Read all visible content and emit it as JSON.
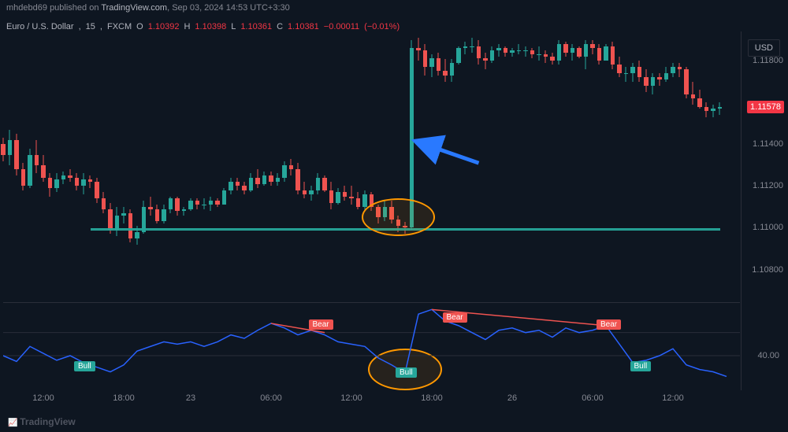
{
  "pubbar": {
    "user": "mhdebd69",
    "text_mid": "published on",
    "site": "TradingView.com",
    "date": "Sep 03, 2024 14:53 UTC+3:30"
  },
  "symbol": {
    "name": "Euro / U.S. Dollar",
    "interval": "15",
    "exchange": "FXCM",
    "O": "1.10392",
    "H": "1.10398",
    "L": "1.10361",
    "C": "1.10381",
    "chg": "−0.00011",
    "chg_pct": "(−0.01%)"
  },
  "price_axis": {
    "currency": "USD",
    "ticks": [
      {
        "label": "1.11800",
        "yval": 1.118
      },
      {
        "label": "1.11400",
        "yval": 1.114
      },
      {
        "label": "1.11200",
        "yval": 1.112
      },
      {
        "label": "1.11000",
        "yval": 1.11
      },
      {
        "label": "1.10800",
        "yval": 1.108
      }
    ],
    "last": {
      "label": "1.11578",
      "yval": 1.11578
    }
  },
  "price_scale": {
    "min": 1.1064,
    "max": 1.1194
  },
  "time_axis": {
    "ticks": [
      {
        "t": 12,
        "label": "12:00"
      },
      {
        "t": 36,
        "label": "18:00"
      },
      {
        "t": 56,
        "label": "23"
      },
      {
        "t": 80,
        "label": "06:00"
      },
      {
        "t": 104,
        "label": "12:00"
      },
      {
        "t": 128,
        "label": "18:00"
      },
      {
        "t": 152,
        "label": "26"
      },
      {
        "t": 176,
        "label": "06:00"
      },
      {
        "t": 200,
        "label": "12:00"
      }
    ],
    "n": 220
  },
  "colors": {
    "up_body": "#26a69a",
    "up_wick": "#26a69a",
    "down_body": "#ef5350",
    "down_wick": "#ef5350",
    "bg": "#0e1621",
    "indicator_line": "#2962ff",
    "support_band": "#26a69a",
    "arrow": "#2979ff",
    "circle": "#ff9800"
  },
  "candles": [
    {
      "t": 0,
      "o": 1.114,
      "h": 1.1143,
      "l": 1.1132,
      "c": 1.1135
    },
    {
      "t": 2,
      "o": 1.1135,
      "h": 1.1147,
      "l": 1.113,
      "c": 1.1142
    },
    {
      "t": 4,
      "o": 1.1142,
      "h": 1.1145,
      "l": 1.1125,
      "c": 1.1128
    },
    {
      "t": 6,
      "o": 1.1128,
      "h": 1.1131,
      "l": 1.1118,
      "c": 1.112
    },
    {
      "t": 8,
      "o": 1.112,
      "h": 1.1138,
      "l": 1.1119,
      "c": 1.1135
    },
    {
      "t": 10,
      "o": 1.1135,
      "h": 1.1142,
      "l": 1.1126,
      "c": 1.113
    },
    {
      "t": 12,
      "o": 1.113,
      "h": 1.1135,
      "l": 1.1122,
      "c": 1.1124
    },
    {
      "t": 14,
      "o": 1.1124,
      "h": 1.1126,
      "l": 1.1115,
      "c": 1.1119
    },
    {
      "t": 16,
      "o": 1.1119,
      "h": 1.1126,
      "l": 1.1117,
      "c": 1.1123
    },
    {
      "t": 18,
      "o": 1.1123,
      "h": 1.1127,
      "l": 1.1121,
      "c": 1.1125
    },
    {
      "t": 20,
      "o": 1.1125,
      "h": 1.1128,
      "l": 1.1122,
      "c": 1.1124
    },
    {
      "t": 22,
      "o": 1.1124,
      "h": 1.1126,
      "l": 1.1118,
      "c": 1.112
    },
    {
      "t": 24,
      "o": 1.112,
      "h": 1.1126,
      "l": 1.1116,
      "c": 1.1123
    },
    {
      "t": 26,
      "o": 1.1123,
      "h": 1.1125,
      "l": 1.1119,
      "c": 1.1122
    },
    {
      "t": 28,
      "o": 1.1122,
      "h": 1.1124,
      "l": 1.1112,
      "c": 1.1114
    },
    {
      "t": 30,
      "o": 1.1114,
      "h": 1.1117,
      "l": 1.1107,
      "c": 1.1109
    },
    {
      "t": 32,
      "o": 1.1109,
      "h": 1.1112,
      "l": 1.1097,
      "c": 1.1099
    },
    {
      "t": 34,
      "o": 1.1099,
      "h": 1.111,
      "l": 1.1096,
      "c": 1.1106
    },
    {
      "t": 36,
      "o": 1.1106,
      "h": 1.111,
      "l": 1.1102,
      "c": 1.1107
    },
    {
      "t": 38,
      "o": 1.1107,
      "h": 1.1109,
      "l": 1.1093,
      "c": 1.1095
    },
    {
      "t": 40,
      "o": 1.1095,
      "h": 1.1101,
      "l": 1.1092,
      "c": 1.1098
    },
    {
      "t": 42,
      "o": 1.1098,
      "h": 1.1113,
      "l": 1.1097,
      "c": 1.111
    },
    {
      "t": 44,
      "o": 1.111,
      "h": 1.1115,
      "l": 1.1106,
      "c": 1.1109
    },
    {
      "t": 46,
      "o": 1.1109,
      "h": 1.1111,
      "l": 1.1102,
      "c": 1.1103
    },
    {
      "t": 48,
      "o": 1.1103,
      "h": 1.1111,
      "l": 1.1102,
      "c": 1.1109
    },
    {
      "t": 50,
      "o": 1.1109,
      "h": 1.1115,
      "l": 1.1107,
      "c": 1.1114
    },
    {
      "t": 52,
      "o": 1.1114,
      "h": 1.1115,
      "l": 1.1106,
      "c": 1.1108
    },
    {
      "t": 54,
      "o": 1.1108,
      "h": 1.111,
      "l": 1.1106,
      "c": 1.1109
    },
    {
      "t": 56,
      "o": 1.1109,
      "h": 1.1114,
      "l": 1.1108,
      "c": 1.1113
    },
    {
      "t": 58,
      "o": 1.1113,
      "h": 1.1114,
      "l": 1.1109,
      "c": 1.1111
    },
    {
      "t": 60,
      "o": 1.1111,
      "h": 1.1114,
      "l": 1.1109,
      "c": 1.1111
    },
    {
      "t": 62,
      "o": 1.1111,
      "h": 1.1115,
      "l": 1.1108,
      "c": 1.1113
    },
    {
      "t": 64,
      "o": 1.1113,
      "h": 1.1114,
      "l": 1.111,
      "c": 1.1111
    },
    {
      "t": 66,
      "o": 1.1111,
      "h": 1.1119,
      "l": 1.1111,
      "c": 1.1118
    },
    {
      "t": 68,
      "o": 1.1118,
      "h": 1.1124,
      "l": 1.1116,
      "c": 1.1122
    },
    {
      "t": 70,
      "o": 1.1122,
      "h": 1.1124,
      "l": 1.1118,
      "c": 1.112
    },
    {
      "t": 72,
      "o": 1.112,
      "h": 1.1122,
      "l": 1.1116,
      "c": 1.1118
    },
    {
      "t": 74,
      "o": 1.1118,
      "h": 1.1126,
      "l": 1.1117,
      "c": 1.1124
    },
    {
      "t": 76,
      "o": 1.1124,
      "h": 1.1128,
      "l": 1.1119,
      "c": 1.1121
    },
    {
      "t": 78,
      "o": 1.1121,
      "h": 1.1127,
      "l": 1.112,
      "c": 1.1125
    },
    {
      "t": 80,
      "o": 1.1125,
      "h": 1.1127,
      "l": 1.112,
      "c": 1.1122
    },
    {
      "t": 82,
      "o": 1.1122,
      "h": 1.1126,
      "l": 1.112,
      "c": 1.1124
    },
    {
      "t": 84,
      "o": 1.1124,
      "h": 1.1132,
      "l": 1.1122,
      "c": 1.113
    },
    {
      "t": 86,
      "o": 1.113,
      "h": 1.1133,
      "l": 1.1125,
      "c": 1.1128
    },
    {
      "t": 88,
      "o": 1.1128,
      "h": 1.1131,
      "l": 1.1116,
      "c": 1.1118
    },
    {
      "t": 90,
      "o": 1.1118,
      "h": 1.1122,
      "l": 1.1114,
      "c": 1.1116
    },
    {
      "t": 92,
      "o": 1.1116,
      "h": 1.112,
      "l": 1.1113,
      "c": 1.1118
    },
    {
      "t": 94,
      "o": 1.1118,
      "h": 1.1126,
      "l": 1.1116,
      "c": 1.1124
    },
    {
      "t": 96,
      "o": 1.1124,
      "h": 1.1125,
      "l": 1.1117,
      "c": 1.1118
    },
    {
      "t": 98,
      "o": 1.1118,
      "h": 1.1122,
      "l": 1.1109,
      "c": 1.1112
    },
    {
      "t": 100,
      "o": 1.1112,
      "h": 1.1119,
      "l": 1.1111,
      "c": 1.1117
    },
    {
      "t": 102,
      "o": 1.1117,
      "h": 1.112,
      "l": 1.1113,
      "c": 1.1115
    },
    {
      "t": 104,
      "o": 1.1115,
      "h": 1.112,
      "l": 1.1111,
      "c": 1.1114
    },
    {
      "t": 106,
      "o": 1.1114,
      "h": 1.1117,
      "l": 1.1109,
      "c": 1.111
    },
    {
      "t": 108,
      "o": 1.111,
      "h": 1.1118,
      "l": 1.1108,
      "c": 1.1116
    },
    {
      "t": 110,
      "o": 1.1116,
      "h": 1.1117,
      "l": 1.1108,
      "c": 1.111
    },
    {
      "t": 112,
      "o": 1.111,
      "h": 1.1111,
      "l": 1.1102,
      "c": 1.1105
    },
    {
      "t": 114,
      "o": 1.1105,
      "h": 1.1113,
      "l": 1.1103,
      "c": 1.111
    },
    {
      "t": 116,
      "o": 1.111,
      "h": 1.1113,
      "l": 1.1102,
      "c": 1.1104
    },
    {
      "t": 118,
      "o": 1.1104,
      "h": 1.1106,
      "l": 1.1098,
      "c": 1.1101
    },
    {
      "t": 120,
      "o": 1.1101,
      "h": 1.1103,
      "l": 1.1097,
      "c": 1.11
    },
    {
      "t": 122,
      "o": 1.11,
      "h": 1.119,
      "l": 1.1099,
      "c": 1.1186
    },
    {
      "t": 124,
      "o": 1.1186,
      "h": 1.1191,
      "l": 1.118,
      "c": 1.1185
    },
    {
      "t": 126,
      "o": 1.1185,
      "h": 1.1188,
      "l": 1.1173,
      "c": 1.1177
    },
    {
      "t": 128,
      "o": 1.1177,
      "h": 1.1183,
      "l": 1.1172,
      "c": 1.1181
    },
    {
      "t": 130,
      "o": 1.1181,
      "h": 1.1184,
      "l": 1.1173,
      "c": 1.1175
    },
    {
      "t": 132,
      "o": 1.1175,
      "h": 1.1181,
      "l": 1.117,
      "c": 1.1173
    },
    {
      "t": 134,
      "o": 1.1173,
      "h": 1.1181,
      "l": 1.117,
      "c": 1.1179
    },
    {
      "t": 136,
      "o": 1.1179,
      "h": 1.1187,
      "l": 1.1178,
      "c": 1.1186
    },
    {
      "t": 138,
      "o": 1.1186,
      "h": 1.1189,
      "l": 1.1183,
      "c": 1.1187
    },
    {
      "t": 140,
      "o": 1.1187,
      "h": 1.1191,
      "l": 1.1184,
      "c": 1.1187
    },
    {
      "t": 142,
      "o": 1.1187,
      "h": 1.119,
      "l": 1.1178,
      "c": 1.1181
    },
    {
      "t": 144,
      "o": 1.1181,
      "h": 1.1184,
      "l": 1.1176,
      "c": 1.118
    },
    {
      "t": 146,
      "o": 1.118,
      "h": 1.1187,
      "l": 1.1179,
      "c": 1.1185
    },
    {
      "t": 148,
      "o": 1.1185,
      "h": 1.1188,
      "l": 1.1182,
      "c": 1.1186
    },
    {
      "t": 150,
      "o": 1.1186,
      "h": 1.1187,
      "l": 1.1182,
      "c": 1.1184
    },
    {
      "t": 152,
      "o": 1.1184,
      "h": 1.1186,
      "l": 1.1182,
      "c": 1.1185
    },
    {
      "t": 154,
      "o": 1.1185,
      "h": 1.1188,
      "l": 1.1183,
      "c": 1.1185
    },
    {
      "t": 156,
      "o": 1.1185,
      "h": 1.1187,
      "l": 1.1182,
      "c": 1.1185
    },
    {
      "t": 158,
      "o": 1.1185,
      "h": 1.1186,
      "l": 1.1181,
      "c": 1.1183
    },
    {
      "t": 160,
      "o": 1.1183,
      "h": 1.1187,
      "l": 1.118,
      "c": 1.1183
    },
    {
      "t": 162,
      "o": 1.1183,
      "h": 1.1185,
      "l": 1.1179,
      "c": 1.1182
    },
    {
      "t": 164,
      "o": 1.1182,
      "h": 1.1184,
      "l": 1.1178,
      "c": 1.118
    },
    {
      "t": 166,
      "o": 1.118,
      "h": 1.119,
      "l": 1.1178,
      "c": 1.1188
    },
    {
      "t": 168,
      "o": 1.1188,
      "h": 1.1189,
      "l": 1.1182,
      "c": 1.1184
    },
    {
      "t": 170,
      "o": 1.1184,
      "h": 1.1188,
      "l": 1.118,
      "c": 1.1186
    },
    {
      "t": 172,
      "o": 1.1186,
      "h": 1.1187,
      "l": 1.1181,
      "c": 1.1182
    },
    {
      "t": 174,
      "o": 1.1182,
      "h": 1.119,
      "l": 1.1176,
      "c": 1.1188
    },
    {
      "t": 176,
      "o": 1.1188,
      "h": 1.119,
      "l": 1.1183,
      "c": 1.1186
    },
    {
      "t": 178,
      "o": 1.1186,
      "h": 1.1188,
      "l": 1.1178,
      "c": 1.118
    },
    {
      "t": 180,
      "o": 1.118,
      "h": 1.1188,
      "l": 1.118,
      "c": 1.1187
    },
    {
      "t": 182,
      "o": 1.1187,
      "h": 1.1189,
      "l": 1.1176,
      "c": 1.1178
    },
    {
      "t": 184,
      "o": 1.1178,
      "h": 1.1182,
      "l": 1.1172,
      "c": 1.1174
    },
    {
      "t": 186,
      "o": 1.1174,
      "h": 1.1177,
      "l": 1.117,
      "c": 1.1174
    },
    {
      "t": 188,
      "o": 1.1174,
      "h": 1.1179,
      "l": 1.117,
      "c": 1.1177
    },
    {
      "t": 190,
      "o": 1.1177,
      "h": 1.118,
      "l": 1.117,
      "c": 1.1172
    },
    {
      "t": 192,
      "o": 1.1172,
      "h": 1.1176,
      "l": 1.1165,
      "c": 1.1168
    },
    {
      "t": 194,
      "o": 1.1168,
      "h": 1.1174,
      "l": 1.1164,
      "c": 1.1172
    },
    {
      "t": 196,
      "o": 1.1172,
      "h": 1.1174,
      "l": 1.1168,
      "c": 1.1171
    },
    {
      "t": 198,
      "o": 1.1171,
      "h": 1.1177,
      "l": 1.117,
      "c": 1.1174
    },
    {
      "t": 200,
      "o": 1.1174,
      "h": 1.1179,
      "l": 1.1172,
      "c": 1.1177
    },
    {
      "t": 202,
      "o": 1.1177,
      "h": 1.1179,
      "l": 1.1172,
      "c": 1.1176
    },
    {
      "t": 204,
      "o": 1.1176,
      "h": 1.1177,
      "l": 1.1162,
      "c": 1.1164
    },
    {
      "t": 206,
      "o": 1.1164,
      "h": 1.117,
      "l": 1.1159,
      "c": 1.1162
    },
    {
      "t": 208,
      "o": 1.1162,
      "h": 1.1166,
      "l": 1.1157,
      "c": 1.1158
    },
    {
      "t": 210,
      "o": 1.1158,
      "h": 1.116,
      "l": 1.1153,
      "c": 1.1156
    },
    {
      "t": 212,
      "o": 1.1156,
      "h": 1.1159,
      "l": 1.1153,
      "c": 1.1157
    },
    {
      "t": 214,
      "o": 1.1157,
      "h": 1.116,
      "l": 1.1154,
      "c": 1.11578
    }
  ],
  "support_band": {
    "y": 1.1099,
    "left_t": 26,
    "right_t": 214
  },
  "circles": [
    {
      "panel": "main",
      "t": 118,
      "y": 1.1105,
      "r_t": 11,
      "r_y": 0.0009
    },
    {
      "panel": "ind",
      "t": 120,
      "v": 28,
      "r_t": 11,
      "r_v": 18
    }
  ],
  "arrow": {
    "tip_t": 124,
    "tip_y": 1.1141,
    "tail_t": 142,
    "tail_y": 1.1131
  },
  "indicator": {
    "scale": {
      "min": 10,
      "max": 85
    },
    "tick": {
      "v": 40,
      "label": "40.00"
    },
    "grid": [
      60,
      40
    ],
    "points": [
      {
        "t": 0,
        "v": 40
      },
      {
        "t": 4,
        "v": 35
      },
      {
        "t": 8,
        "v": 48
      },
      {
        "t": 12,
        "v": 42
      },
      {
        "t": 16,
        "v": 36
      },
      {
        "t": 20,
        "v": 40
      },
      {
        "t": 24,
        "v": 34
      },
      {
        "t": 28,
        "v": 30
      },
      {
        "t": 32,
        "v": 26
      },
      {
        "t": 36,
        "v": 32
      },
      {
        "t": 40,
        "v": 44
      },
      {
        "t": 44,
        "v": 48
      },
      {
        "t": 48,
        "v": 52
      },
      {
        "t": 52,
        "v": 50
      },
      {
        "t": 56,
        "v": 52
      },
      {
        "t": 60,
        "v": 48
      },
      {
        "t": 64,
        "v": 52
      },
      {
        "t": 68,
        "v": 58
      },
      {
        "t": 72,
        "v": 55
      },
      {
        "t": 76,
        "v": 62
      },
      {
        "t": 80,
        "v": 68
      },
      {
        "t": 84,
        "v": 64
      },
      {
        "t": 88,
        "v": 58
      },
      {
        "t": 92,
        "v": 62
      },
      {
        "t": 96,
        "v": 58
      },
      {
        "t": 100,
        "v": 52
      },
      {
        "t": 104,
        "v": 50
      },
      {
        "t": 108,
        "v": 48
      },
      {
        "t": 112,
        "v": 38
      },
      {
        "t": 116,
        "v": 32
      },
      {
        "t": 120,
        "v": 25
      },
      {
        "t": 124,
        "v": 76
      },
      {
        "t": 128,
        "v": 80
      },
      {
        "t": 132,
        "v": 70
      },
      {
        "t": 136,
        "v": 66
      },
      {
        "t": 140,
        "v": 60
      },
      {
        "t": 144,
        "v": 54
      },
      {
        "t": 148,
        "v": 62
      },
      {
        "t": 152,
        "v": 64
      },
      {
        "t": 156,
        "v": 60
      },
      {
        "t": 160,
        "v": 62
      },
      {
        "t": 164,
        "v": 56
      },
      {
        "t": 168,
        "v": 64
      },
      {
        "t": 172,
        "v": 60
      },
      {
        "t": 176,
        "v": 62
      },
      {
        "t": 180,
        "v": 66
      },
      {
        "t": 184,
        "v": 50
      },
      {
        "t": 188,
        "v": 34
      },
      {
        "t": 192,
        "v": 36
      },
      {
        "t": 196,
        "v": 40
      },
      {
        "t": 200,
        "v": 46
      },
      {
        "t": 204,
        "v": 32
      },
      {
        "t": 208,
        "v": 28
      },
      {
        "t": 212,
        "v": 26
      },
      {
        "t": 216,
        "v": 22
      }
    ],
    "div_lines": [
      {
        "t1": 80,
        "v1": 68,
        "t2": 96,
        "v2": 60
      },
      {
        "t1": 128,
        "v1": 80,
        "t2": 180,
        "v2": 66
      }
    ],
    "tags": [
      {
        "kind": "bull",
        "label": "Bull",
        "t": 24,
        "v": 30
      },
      {
        "kind": "bear",
        "label": "Bear",
        "t": 94,
        "v": 66
      },
      {
        "kind": "bull",
        "label": "Bull",
        "t": 120,
        "v": 24
      },
      {
        "kind": "bear",
        "label": "Bear",
        "t": 134,
        "v": 72
      },
      {
        "kind": "bear",
        "label": "Bear",
        "t": 180,
        "v": 66
      },
      {
        "kind": "bull",
        "label": "Bull",
        "t": 190,
        "v": 30
      }
    ]
  },
  "watermark": "TradingView"
}
